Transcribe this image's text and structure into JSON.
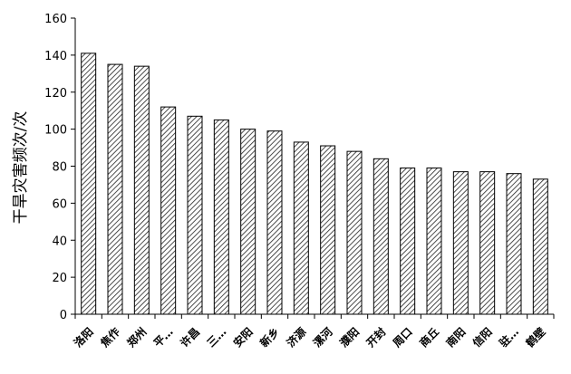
{
  "chart_data": {
    "type": "bar",
    "title": "",
    "xlabel": "",
    "ylabel": "干旱灾害频次/次",
    "ylim": [
      0,
      160
    ],
    "yticks": [
      0,
      20,
      40,
      60,
      80,
      100,
      120,
      140,
      160
    ],
    "grid": false,
    "bar_fill": "diagonal-hatch",
    "bar_color": "#000000",
    "categories": [
      "洛阳",
      "焦作",
      "郑州",
      "平…",
      "许昌",
      "三…",
      "安阳",
      "新乡",
      "济源",
      "漯河",
      "濮阳",
      "开封",
      "周口",
      "商丘",
      "南阳",
      "信阳",
      "驻…",
      "鹤壁"
    ],
    "values": [
      141,
      135,
      134,
      112,
      107,
      105,
      100,
      99,
      93,
      91,
      88,
      84,
      79,
      79,
      77,
      77,
      76,
      73
    ]
  }
}
